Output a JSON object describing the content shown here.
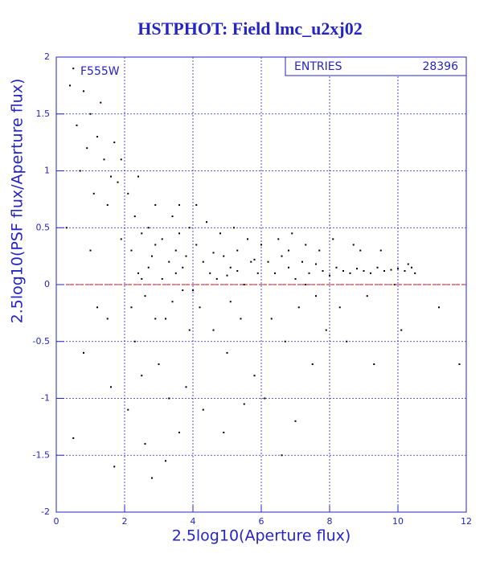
{
  "chart_data": {
    "type": "scatter",
    "title": "HSTPHOT: Field lmc_u2xj02",
    "annotation": "F555W",
    "stats_label": "ENTRIES",
    "entries": 28396,
    "x_label": "2.5log10(Aperture flux)",
    "y_label": "2.5log10(PSF flux/Aperture flux)",
    "xlim": [
      0,
      12
    ],
    "ylim": [
      -2,
      2
    ],
    "xticks": [
      0,
      2,
      4,
      6,
      8,
      10,
      12
    ],
    "yticks": [
      -2,
      -1.5,
      -1,
      -0.5,
      0,
      0.5,
      1,
      1.5,
      2
    ],
    "grid": true,
    "reference_line": 0,
    "reference_color": "#e00000",
    "color": "#000000",
    "x": [
      0.5,
      0.8,
      1.0,
      1.2,
      0.9,
      1.4,
      1.6,
      1.1,
      1.8,
      0.6,
      1.3,
      0.7,
      1.5,
      1.9,
      0.4,
      1.7,
      0.3,
      1.0,
      1.2,
      0.8,
      1.5,
      1.9,
      1.6,
      0.5,
      1.7,
      2.1,
      2.3,
      2.5,
      2.2,
      2.4,
      2.6,
      2.8,
      2.7,
      2.9,
      2.3,
      2.5,
      2.1,
      2.6,
      2.8,
      2.4,
      2.9,
      2.2,
      2.7,
      2.5,
      2.9,
      3.1,
      3.3,
      3.5,
      3.7,
      3.2,
      3.4,
      3.6,
      3.8,
      3.9,
      3.0,
      3.3,
      3.6,
      3.2,
      3.8,
      3.5,
      3.7,
      3.1,
      3.9,
      3.4,
      3.6,
      4.1,
      4.3,
      4.5,
      4.7,
      4.9,
      5.1,
      5.3,
      5.5,
      5.7,
      5.9,
      4.2,
      4.6,
      5.0,
      5.4,
      5.8,
      4.4,
      4.8,
      5.2,
      5.6,
      6.0,
      4.3,
      4.9,
      5.5,
      4.0,
      5.0,
      4.6,
      5.3,
      5.8,
      4.1,
      5.1,
      6.2,
      6.4,
      6.6,
      6.8,
      7.0,
      7.2,
      7.4,
      7.6,
      7.8,
      8.0,
      6.3,
      6.7,
      7.1,
      7.5,
      7.9,
      6.5,
      6.9,
      7.3,
      7.7,
      6.1,
      7.0,
      6.6,
      7.3,
      6.8,
      7.6,
      8.2,
      8.4,
      8.6,
      8.8,
      9.0,
      9.2,
      9.4,
      9.6,
      9.8,
      10.0,
      10.2,
      10.4,
      8.3,
      8.7,
      9.1,
      9.5,
      9.9,
      8.5,
      9.3,
      10.1,
      8.1,
      8.9,
      10.3,
      10.5,
      11.2,
      11.8
    ],
    "values": [
      1.9,
      1.7,
      1.5,
      1.3,
      1.2,
      1.1,
      0.95,
      0.8,
      0.9,
      1.4,
      1.6,
      1.0,
      0.7,
      1.1,
      1.75,
      1.25,
      0.5,
      0.3,
      -0.2,
      -0.6,
      -0.3,
      0.4,
      -0.9,
      -1.35,
      -1.6,
      0.8,
      0.6,
      0.45,
      0.3,
      0.1,
      -0.1,
      0.25,
      0.5,
      -0.3,
      -0.5,
      -0.8,
      -1.1,
      -1.4,
      -1.7,
      0.95,
      0.7,
      -0.2,
      0.15,
      0.05,
      0.35,
      0.4,
      0.2,
      0.1,
      -0.05,
      -0.3,
      0.6,
      0.45,
      0.25,
      -0.4,
      -0.7,
      -1.0,
      -1.3,
      -1.55,
      -0.9,
      0.3,
      0.15,
      0.05,
      0.5,
      -0.15,
      0.7,
      0.35,
      0.2,
      0.1,
      0.05,
      0.25,
      0.15,
      0.3,
      0.0,
      0.2,
      0.1,
      -0.2,
      -0.4,
      -0.6,
      -0.3,
      -0.8,
      0.55,
      0.45,
      0.5,
      0.4,
      0.35,
      -1.1,
      -1.3,
      -1.05,
      -0.05,
      0.08,
      0.28,
      0.12,
      0.22,
      0.7,
      -0.15,
      0.2,
      0.1,
      0.25,
      0.15,
      0.05,
      0.2,
      0.1,
      0.18,
      0.12,
      0.08,
      -0.3,
      -0.5,
      -0.2,
      -0.7,
      -0.4,
      0.4,
      0.45,
      0.35,
      0.3,
      -1.0,
      -1.2,
      -1.5,
      0.0,
      0.3,
      -0.1,
      0.15,
      0.12,
      0.1,
      0.14,
      0.12,
      0.1,
      0.15,
      0.12,
      0.13,
      0.14,
      0.12,
      0.15,
      -0.2,
      0.35,
      -0.1,
      0.3,
      0.0,
      -0.5,
      -0.7,
      -0.4,
      0.4,
      0.3,
      0.18,
      0.1,
      -0.2,
      -0.7
    ]
  }
}
